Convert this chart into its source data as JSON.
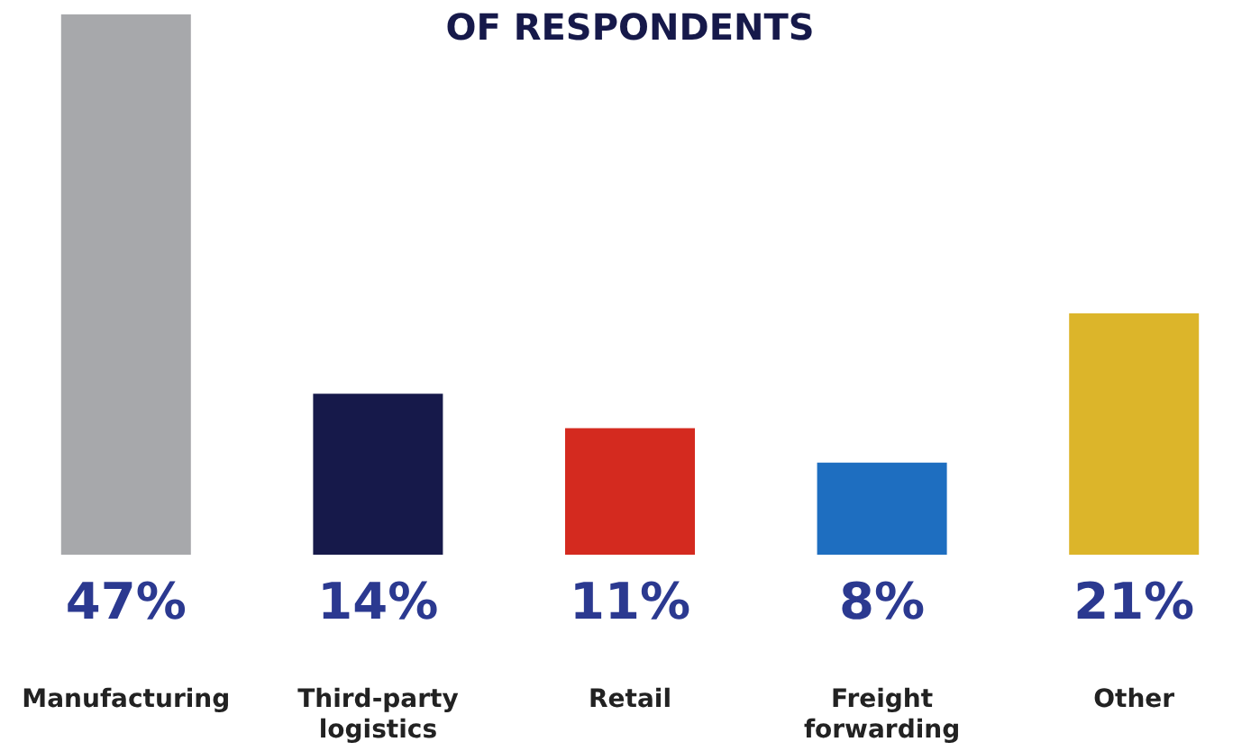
{
  "chart_data": {
    "type": "bar",
    "title": "OF RESPONDENTS",
    "categories": [
      "Manufacturing",
      "Third-party\nlogistics",
      "Retail",
      "Freight\nforwarding",
      "Other"
    ],
    "values": [
      47,
      14,
      11,
      8,
      21
    ],
    "colors": [
      "#a7a8ab",
      "#16194a",
      "#d42a1f",
      "#1e6ec0",
      "#dcb52a"
    ],
    "value_labels": [
      "47%",
      "14%",
      "11%",
      "8%",
      "21%"
    ]
  }
}
